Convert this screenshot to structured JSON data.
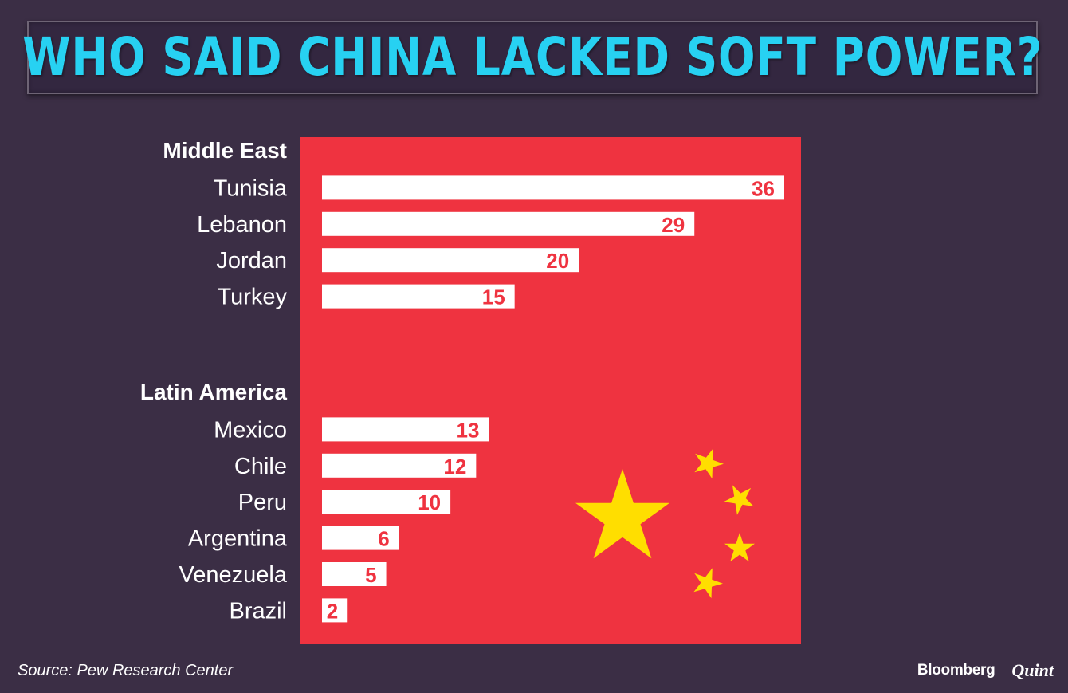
{
  "title": "WHO SAID CHINA LACKED SOFT POWER?",
  "source": "Source:  Pew Research Center",
  "logo": {
    "left": "Bloomberg",
    "right": "Quint"
  },
  "colors": {
    "background": "#3b2e45",
    "title": "#27d1f2",
    "panel": "#ef3340",
    "bar": "#ffffff",
    "value_text": "#ef3340",
    "star": "#ffde00"
  },
  "chart_data": {
    "type": "bar",
    "orientation": "horizontal",
    "title": "WHO SAID CHINA LACKED SOFT POWER?",
    "groups": [
      {
        "name": "Middle East",
        "categories": [
          "Tunisia",
          "Lebanon",
          "Jordan",
          "Turkey"
        ],
        "values": [
          36,
          29,
          20,
          15
        ]
      },
      {
        "name": "Latin America",
        "categories": [
          "Mexico",
          "Chile",
          "Peru",
          "Argentina",
          "Venezuela",
          "Brazil"
        ],
        "values": [
          13,
          12,
          10,
          6,
          5,
          2
        ]
      }
    ],
    "xlim": [
      0,
      36
    ],
    "grid": false,
    "data_labels": true
  }
}
